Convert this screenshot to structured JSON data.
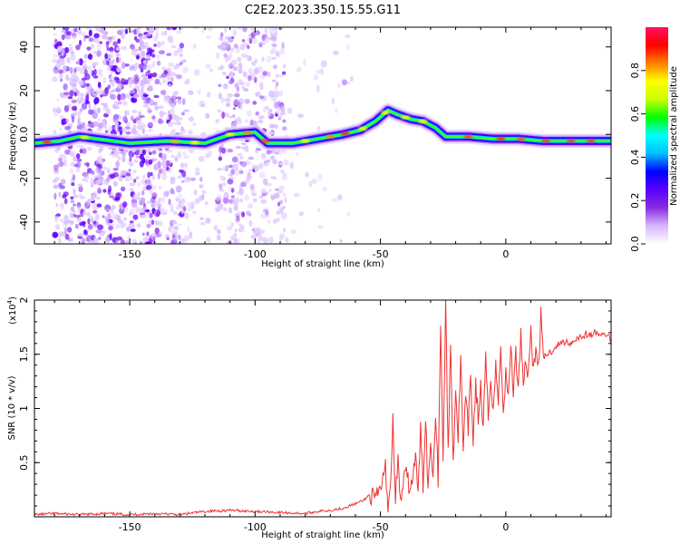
{
  "title": "C2E2.2023.350.15.55.G11",
  "chart_data": [
    {
      "type": "heatmap",
      "xlabel": "Height of straight line (km)",
      "ylabel": "Frequency (Hz)",
      "xlim": [
        -188,
        42
      ],
      "ylim": [
        -50,
        49
      ],
      "xticks": [
        -150,
        -100,
        -50,
        0
      ],
      "yticks": [
        -40,
        -20,
        0,
        20,
        40
      ],
      "colorbar": {
        "label": "Normalized spectral amplitude",
        "range": [
          0,
          1
        ],
        "ticks": [
          0.0,
          0.2,
          0.4,
          0.6,
          0.8
        ],
        "colors": [
          "#ffffff",
          "#d8b6ff",
          "#8a2be2",
          "#5a00ff",
          "#0000ff",
          "#00bfff",
          "#00ffff",
          "#00ff00",
          "#c8ff00",
          "#ffff00",
          "#ff8000",
          "#ff0000",
          "#ff1060"
        ]
      },
      "ridge": [
        {
          "x": -188,
          "y": -4
        },
        {
          "x": -178,
          "y": -3
        },
        {
          "x": -170,
          "y": -1
        },
        {
          "x": -150,
          "y": -4
        },
        {
          "x": -135,
          "y": -3
        },
        {
          "x": -120,
          "y": -4
        },
        {
          "x": -110,
          "y": 0
        },
        {
          "x": -100,
          "y": 1
        },
        {
          "x": -95,
          "y": -4
        },
        {
          "x": -85,
          "y": -4
        },
        {
          "x": -75,
          "y": -2
        },
        {
          "x": -65,
          "y": 0
        },
        {
          "x": -58,
          "y": 2
        },
        {
          "x": -52,
          "y": 6
        },
        {
          "x": -47,
          "y": 11
        },
        {
          "x": -43,
          "y": 9
        },
        {
          "x": -38,
          "y": 7
        },
        {
          "x": -33,
          "y": 6
        },
        {
          "x": -28,
          "y": 3
        },
        {
          "x": -24,
          "y": -1
        },
        {
          "x": -15,
          "y": -1
        },
        {
          "x": -5,
          "y": -2
        },
        {
          "x": 5,
          "y": -2
        },
        {
          "x": 15,
          "y": -3
        },
        {
          "x": 42,
          "y": -3
        }
      ]
    },
    {
      "type": "line",
      "xlabel": "Height of straight line (km)",
      "ylabel": "SNR (10 * v/v)",
      "scale_label": "(x10",
      "scale_exp": "4",
      "scale_close": ")",
      "xlim": [
        -188,
        42
      ],
      "ylim": [
        0,
        2.0
      ],
      "xticks": [
        -150,
        -100,
        -50,
        0
      ],
      "yticks": [
        0.5,
        1.0,
        1.5,
        2.0
      ],
      "color": "#ee3333",
      "series": [
        {
          "x": [
            -188,
            -180,
            -170,
            -160,
            -150,
            -140,
            -130,
            -120,
            -110,
            -100,
            -90,
            -80,
            -75,
            -70,
            -65,
            -60,
            -57,
            -54,
            -52,
            -50,
            -48,
            -47,
            -46,
            -45,
            -44,
            -43,
            -42,
            -40,
            -38,
            -36,
            -35,
            -34,
            -33,
            -32,
            -31,
            -30,
            -29,
            -28,
            -27,
            -26,
            -25,
            -24,
            -23,
            -22,
            -21,
            -20,
            -19,
            -18,
            -17,
            -16,
            -15,
            -14,
            -13,
            -12,
            -11,
            -10,
            -9,
            -8,
            -7,
            -6,
            -5,
            -4,
            -3,
            -2,
            -1,
            0,
            1,
            2,
            3,
            4,
            5,
            6,
            7,
            8,
            9,
            10,
            11,
            12,
            13,
            14,
            15,
            16,
            18,
            20,
            22,
            24,
            26,
            28,
            30,
            32,
            34,
            36,
            38,
            40,
            42
          ],
          "y": [
            0.02,
            0.03,
            0.02,
            0.03,
            0.02,
            0.03,
            0.02,
            0.05,
            0.06,
            0.05,
            0.04,
            0.03,
            0.05,
            0.06,
            0.08,
            0.12,
            0.15,
            0.2,
            0.15,
            0.25,
            0.45,
            0.1,
            0.3,
            0.88,
            0.2,
            0.5,
            0.15,
            0.4,
            0.25,
            0.55,
            0.2,
            0.8,
            0.3,
            0.95,
            0.25,
            0.7,
            0.4,
            1.0,
            0.35,
            1.8,
            0.5,
            2.0,
            0.6,
            1.6,
            0.5,
            1.2,
            0.7,
            1.5,
            0.6,
            1.1,
            0.8,
            1.3,
            0.7,
            1.25,
            0.9,
            1.2,
            0.8,
            1.45,
            0.9,
            1.3,
            1.0,
            1.4,
            1.05,
            1.55,
            1.0,
            1.3,
            1.1,
            1.6,
            1.15,
            1.5,
            1.2,
            1.7,
            1.25,
            1.45,
            1.3,
            1.75,
            1.35,
            1.5,
            1.4,
            1.85,
            1.45,
            1.5,
            1.52,
            1.58,
            1.6,
            1.62,
            1.6,
            1.65,
            1.66,
            1.68,
            1.68,
            1.7,
            1.67,
            1.69,
            1.64
          ]
        }
      ]
    }
  ]
}
